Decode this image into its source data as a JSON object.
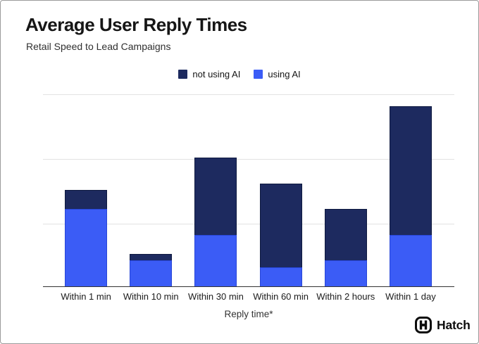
{
  "header": {
    "title": "Average User Reply Times",
    "subtitle": "Retail Speed to Lead Campaigns"
  },
  "legend": [
    {
      "label": "not using AI",
      "color": "#1d2a5f"
    },
    {
      "label": "using AI",
      "color": "#3b5cf6"
    }
  ],
  "chart_data": {
    "type": "bar",
    "stacked": true,
    "categories": [
      "Within 1 min",
      "Within 10 min",
      "Within 30 min",
      "Within 60 min",
      "Within 2 hours",
      "Within 1 day"
    ],
    "series": [
      {
        "name": "using AI",
        "color": "#3b5cf6",
        "border": "#2846d8",
        "values": [
          12,
          4,
          8,
          3,
          4,
          8
        ]
      },
      {
        "name": "not using AI",
        "color": "#1d2a5f",
        "border": "#0f1a40",
        "values": [
          3,
          1,
          12,
          13,
          8,
          20
        ]
      }
    ],
    "title": "Average User Reply Times",
    "subtitle": "Retail Speed to Lead Campaigns",
    "xlabel": "Reply time*",
    "ylabel": "",
    "ylim": [
      0,
      30
    ],
    "gridline_values": [
      10,
      20,
      30
    ],
    "y_axis_labels_visible": false,
    "grid": true,
    "legend_position": "top-center"
  },
  "footer": {
    "brand": "Hatch",
    "logo_icon": "hatch-h-squircle-icon"
  }
}
